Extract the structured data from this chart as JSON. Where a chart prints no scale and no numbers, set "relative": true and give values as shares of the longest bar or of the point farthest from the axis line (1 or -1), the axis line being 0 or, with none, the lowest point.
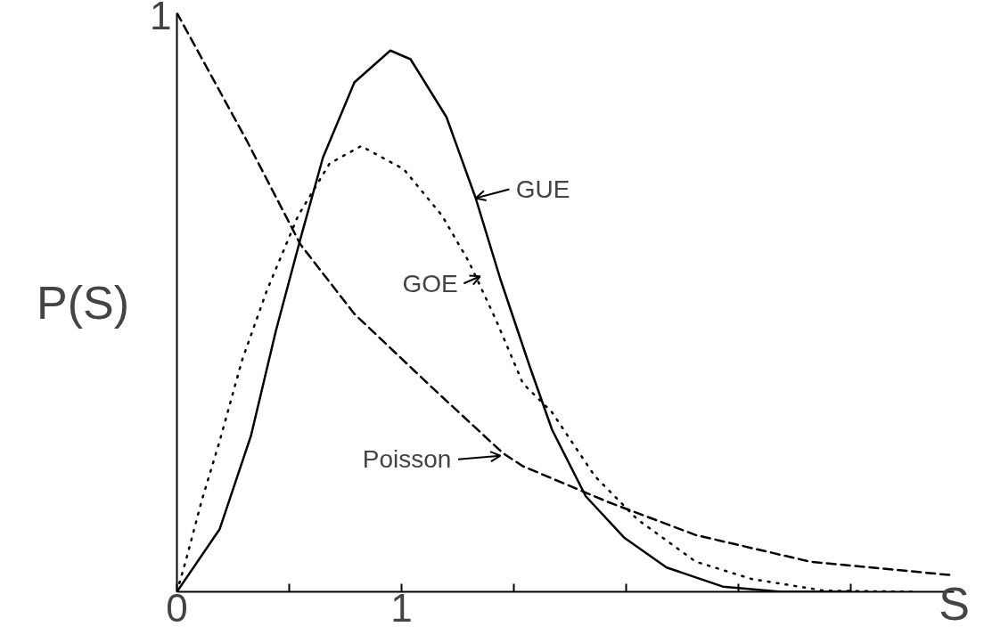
{
  "chart_data": {
    "type": "line",
    "xlabel": "S",
    "ylabel": "P(S)",
    "xlim": [
      0,
      3.46
    ],
    "relative": true,
    "xticks": [
      0,
      {
        "value": 0.5,
        "label": null
      },
      1,
      {
        "value": 1.5,
        "label": null
      },
      {
        "value": 2,
        "label": null
      },
      {
        "value": 2.5,
        "label": null
      },
      {
        "value": 3,
        "label": null
      }
    ],
    "grid": false,
    "marker": "none",
    "series": [
      {
        "color": "#000000",
        "line_style": "solid",
        "x": [
          0,
          0.19,
          0.33,
          0.44,
          0.55,
          0.65,
          0.79,
          0.95,
          1.04,
          1.2,
          1.33,
          1.44,
          1.57,
          1.67,
          1.82,
          1.99,
          2.18,
          2.43,
          2.69,
          3.0
        ],
        "values": [
          0,
          0.108,
          0.27,
          0.45,
          0.61,
          0.75,
          0.88,
          0.935,
          0.92,
          0.82,
          0.68,
          0.54,
          0.39,
          0.28,
          0.165,
          0.094,
          0.042,
          0.009,
          0,
          0
        ]
      },
      {
        "color": "#000000",
        "line_style": "dotted",
        "x": [
          0,
          0.04,
          0.11,
          0.19,
          0.29,
          0.4,
          0.54,
          0.68,
          0.82,
          1.01,
          1.18,
          1.3,
          1.42,
          1.54,
          1.67,
          1.86,
          2.05,
          2.31,
          2.56,
          2.88,
          3.3
        ],
        "values": [
          0,
          0.054,
          0.157,
          0.26,
          0.4,
          0.52,
          0.65,
          0.74,
          0.77,
          0.73,
          0.65,
          0.57,
          0.47,
          0.36,
          0.31,
          0.2,
          0.125,
          0.052,
          0.022,
          0.002,
          0
        ]
      },
      {
        "color": "#000000",
        "line_style": "dashed",
        "x": [
          0,
          0.31,
          0.55,
          0.79,
          1.13,
          1.45,
          1.54,
          1.92,
          2.31,
          2.82,
          3.44
        ],
        "values": [
          1.0,
          0.78,
          0.6,
          0.48,
          0.355,
          0.24,
          0.217,
          0.155,
          0.098,
          0.052,
          0.029
        ]
      }
    ],
    "annotations": [
      "1",
      {
        "text": "GUE",
        "x": 1.33,
        "y": 0.68
      },
      {
        "text": "GOE",
        "x": 1.35,
        "y": 0.545
      },
      {
        "text": "Poisson",
        "x": 1.44,
        "y": 0.235
      }
    ]
  }
}
